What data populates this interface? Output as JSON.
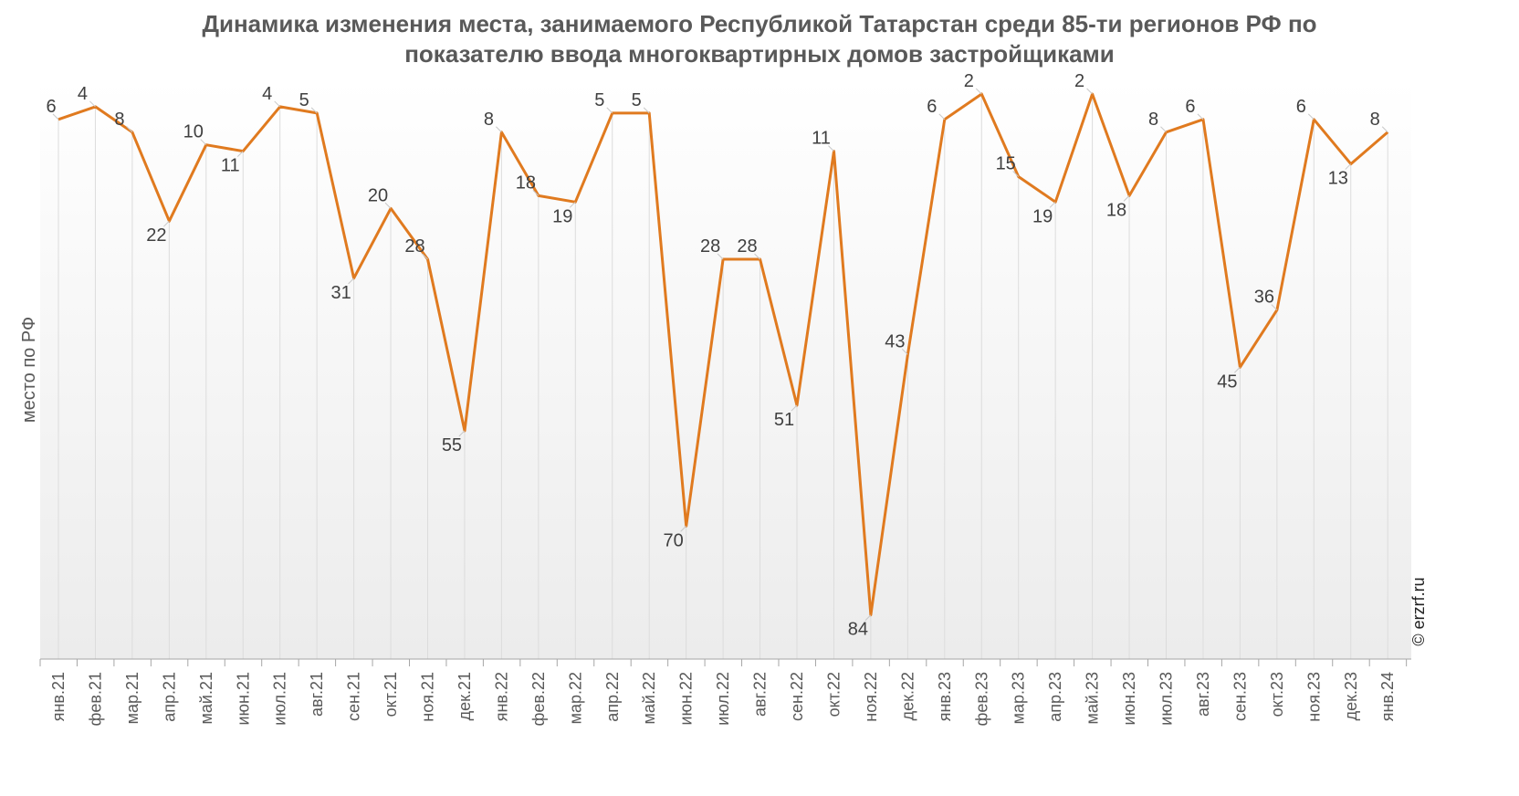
{
  "chart_data": {
    "type": "line",
    "title": "Динамика изменения места, занимаемого Республикой Татарстан среди 85-ти регионов РФ по показателю ввода многоквартирных домов застройщиками",
    "ylabel": "место по РФ",
    "xlabel": "",
    "y_inverted": true,
    "ylim": [
      1,
      90
    ],
    "grid": "vertical",
    "x": [
      "янв.21",
      "фев.21",
      "мар.21",
      "апр.21",
      "май.21",
      "июн.21",
      "июл.21",
      "авг.21",
      "сен.21",
      "окт.21",
      "ноя.21",
      "дек.21",
      "янв.22",
      "фев.22",
      "мар.22",
      "апр.22",
      "май.22",
      "июн.22",
      "июл.22",
      "авг.22",
      "сен.22",
      "окт.22",
      "ноя.22",
      "дек.22",
      "янв.23",
      "фев.23",
      "мар.23",
      "апр.23",
      "май.23",
      "июн.23",
      "июл.23",
      "авг.23",
      "сен.23",
      "окт.23",
      "ноя.23",
      "дек.23",
      "янв.24"
    ],
    "values": [
      6,
      4,
      8,
      22,
      10,
      11,
      4,
      5,
      31,
      20,
      28,
      55,
      8,
      18,
      19,
      5,
      5,
      70,
      28,
      28,
      51,
      11,
      84,
      43,
      6,
      2,
      15,
      19,
      2,
      18,
      8,
      6,
      45,
      36,
      6,
      13,
      8
    ],
    "line_color": "#E07A1F",
    "credit": "© erzrf.ru"
  }
}
